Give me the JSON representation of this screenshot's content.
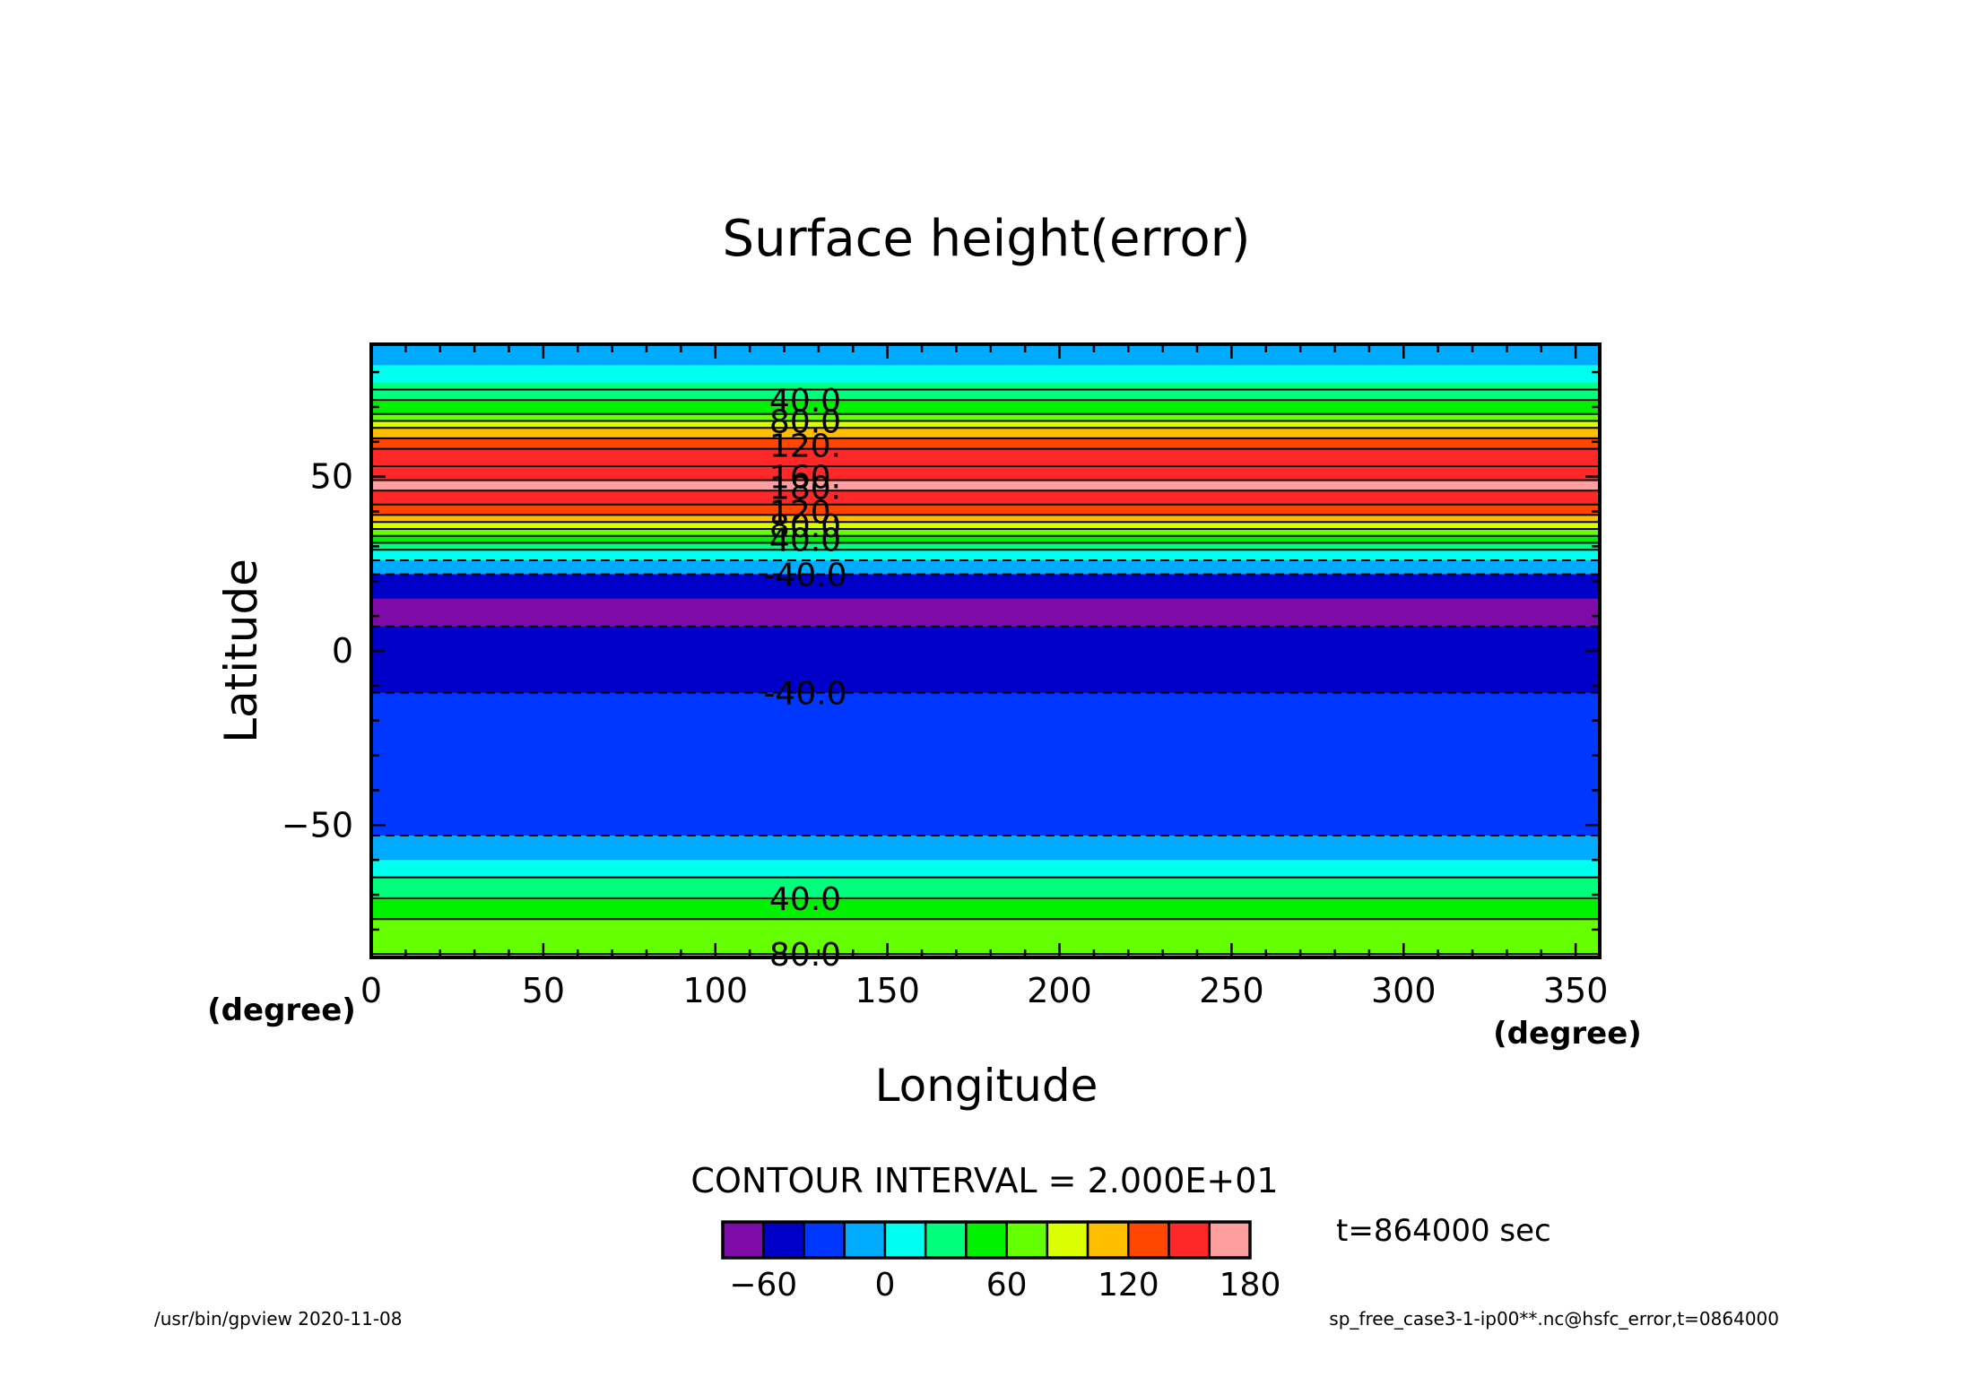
{
  "chart_data": {
    "type": "heatmap",
    "title": "Surface height(error)",
    "xlabel": "Longitude",
    "ylabel": "Latitude",
    "x_unit": "(degree)",
    "y_unit": "(degree)",
    "xlim": [
      0,
      357
    ],
    "ylim": [
      -88,
      88
    ],
    "x_ticks": [
      0,
      50,
      100,
      150,
      200,
      250,
      300,
      350
    ],
    "y_ticks": [
      -50,
      0,
      50
    ],
    "contour_interval_text": "CONTOUR INTERVAL = 2.000E+01",
    "time_text": "t=864000 sec",
    "footer_left": "/usr/bin/gpview   2020-11-08",
    "footer_right": "sp_free_case3-1-ip00**.nc@hsfc_error,t=0864000",
    "colorbar": {
      "levels": [
        -80,
        -60,
        -40,
        -20,
        0,
        20,
        40,
        60,
        80,
        100,
        120,
        140,
        160,
        180
      ],
      "colors": [
        "#7e0aa8",
        "#0000c8",
        "#0037ff",
        "#00aaff",
        "#00ffee",
        "#00ff7d",
        "#00f000",
        "#64ff00",
        "#dcff00",
        "#ffbe00",
        "#ff4600",
        "#ff2828",
        "#ff9e9e"
      ],
      "tick_labels": [
        "-60",
        "0",
        "60",
        "120",
        "180"
      ]
    },
    "bands": [
      {
        "lat_from": 82,
        "lat_to": 88,
        "color": "#00aaff"
      },
      {
        "lat_from": 77,
        "lat_to": 82,
        "color": "#00ffee"
      },
      {
        "lat_from": 74,
        "lat_to": 77,
        "color": "#00ff7d"
      },
      {
        "lat_from": 72,
        "lat_to": 74,
        "color": "#00ff7d"
      },
      {
        "lat_from": 68,
        "lat_to": 72,
        "color": "#00f000"
      },
      {
        "lat_from": 66,
        "lat_to": 68,
        "color": "#64ff00"
      },
      {
        "lat_from": 64,
        "lat_to": 66,
        "color": "#dcff00"
      },
      {
        "lat_from": 61,
        "lat_to": 64,
        "color": "#ffbe00"
      },
      {
        "lat_from": 58,
        "lat_to": 61,
        "color": "#ff4600"
      },
      {
        "lat_from": 53,
        "lat_to": 58,
        "color": "#ff2828"
      },
      {
        "lat_from": 49,
        "lat_to": 53,
        "color": "#ff2828"
      },
      {
        "lat_from": 46,
        "lat_to": 49,
        "color": "#ff9e9e"
      },
      {
        "lat_from": 42,
        "lat_to": 46,
        "color": "#ff2828"
      },
      {
        "lat_from": 39,
        "lat_to": 42,
        "color": "#ff4600"
      },
      {
        "lat_from": 37,
        "lat_to": 39,
        "color": "#ffbe00"
      },
      {
        "lat_from": 35,
        "lat_to": 37,
        "color": "#dcff00"
      },
      {
        "lat_from": 33,
        "lat_to": 35,
        "color": "#64ff00"
      },
      {
        "lat_from": 31,
        "lat_to": 33,
        "color": "#00f000"
      },
      {
        "lat_from": 29,
        "lat_to": 31,
        "color": "#00ff7d"
      },
      {
        "lat_from": 26,
        "lat_to": 29,
        "color": "#00ffee"
      },
      {
        "lat_from": 22,
        "lat_to": 26,
        "color": "#00aaff"
      },
      {
        "lat_from": 15,
        "lat_to": 22,
        "color": "#0000c8"
      },
      {
        "lat_from": 7,
        "lat_to": 15,
        "color": "#7e0aa8"
      },
      {
        "lat_from": -12,
        "lat_to": 7,
        "color": "#0000c8"
      },
      {
        "lat_from": -53,
        "lat_to": -12,
        "color": "#0037ff"
      },
      {
        "lat_from": -60,
        "lat_to": -53,
        "color": "#00aaff"
      },
      {
        "lat_from": -65,
        "lat_to": -60,
        "color": "#00ffee"
      },
      {
        "lat_from": -71,
        "lat_to": -65,
        "color": "#00ff7d"
      },
      {
        "lat_from": -77,
        "lat_to": -71,
        "color": "#00f000"
      },
      {
        "lat_from": -88,
        "lat_to": -77,
        "color": "#64ff00"
      }
    ],
    "contours": [
      {
        "lat": 75,
        "dashed": false
      },
      {
        "lat": 72,
        "dashed": false
      },
      {
        "lat": 68,
        "dashed": false
      },
      {
        "lat": 66,
        "dashed": false
      },
      {
        "lat": 64,
        "dashed": false
      },
      {
        "lat": 61,
        "dashed": false
      },
      {
        "lat": 58,
        "dashed": false
      },
      {
        "lat": 53,
        "dashed": false
      },
      {
        "lat": 49,
        "dashed": false
      },
      {
        "lat": 46,
        "dashed": false
      },
      {
        "lat": 42,
        "dashed": false
      },
      {
        "lat": 39,
        "dashed": false
      },
      {
        "lat": 37,
        "dashed": false
      },
      {
        "lat": 35,
        "dashed": false
      },
      {
        "lat": 33,
        "dashed": false
      },
      {
        "lat": 31,
        "dashed": false
      },
      {
        "lat": 29,
        "dashed": false
      },
      {
        "lat": 26,
        "dashed": true
      },
      {
        "lat": 22,
        "dashed": true
      },
      {
        "lat": 7,
        "dashed": true
      },
      {
        "lat": -12,
        "dashed": true
      },
      {
        "lat": -53,
        "dashed": true
      },
      {
        "lat": -65,
        "dashed": false
      },
      {
        "lat": -71,
        "dashed": false
      },
      {
        "lat": -77,
        "dashed": false
      },
      {
        "lat": -87,
        "dashed": false
      }
    ],
    "contour_labels": [
      {
        "text": "40.0",
        "lat": 72
      },
      {
        "text": "80.0",
        "lat": 66
      },
      {
        "text": "120.",
        "lat": 59
      },
      {
        "text": "160.",
        "lat": 50
      },
      {
        "text": "180.",
        "lat": 47
      },
      {
        "text": "120.",
        "lat": 40
      },
      {
        "text": "80.0",
        "lat": 36
      },
      {
        "text": "40.0",
        "lat": 32
      },
      {
        "text": "-40.0",
        "lat": 22
      },
      {
        "text": "-40.0",
        "lat": -12
      },
      {
        "text": "40.0",
        "lat": -71
      },
      {
        "text": "80.0",
        "lat": -87
      }
    ]
  }
}
